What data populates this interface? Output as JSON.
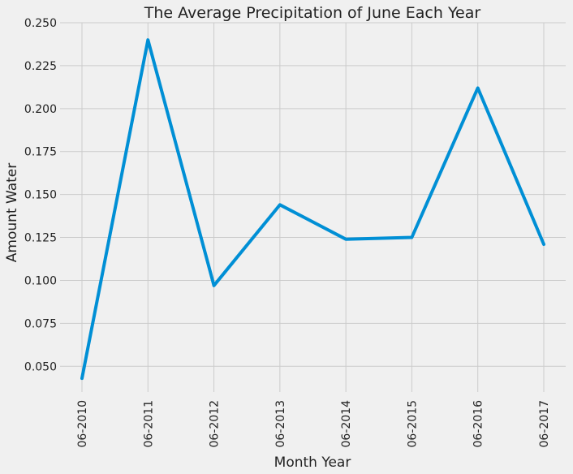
{
  "chart_data": {
    "type": "line",
    "title": "The Average Precipitation of June Each Year",
    "xlabel": "Month Year",
    "ylabel": "Amount Water",
    "categories": [
      "06-2010",
      "06-2011",
      "06-2012",
      "06-2013",
      "06-2014",
      "06-2015",
      "06-2016",
      "06-2017"
    ],
    "series": [
      {
        "values": [
          0.043,
          0.24,
          0.097,
          0.144,
          0.124,
          0.125,
          0.212,
          0.121
        ]
      }
    ],
    "ylim": [
      0.035,
      0.25
    ],
    "yticks": [
      "0.050",
      "0.075",
      "0.100",
      "0.125",
      "0.150",
      "0.175",
      "0.200",
      "0.225",
      "0.250"
    ],
    "ytick_values": [
      0.05,
      0.075,
      0.1,
      0.125,
      0.15,
      0.175,
      0.2,
      0.225,
      0.25
    ],
    "grid": true,
    "line_color": "#008fd5",
    "background": "#f0f0f0",
    "grid_color": "#cbcbcb"
  }
}
